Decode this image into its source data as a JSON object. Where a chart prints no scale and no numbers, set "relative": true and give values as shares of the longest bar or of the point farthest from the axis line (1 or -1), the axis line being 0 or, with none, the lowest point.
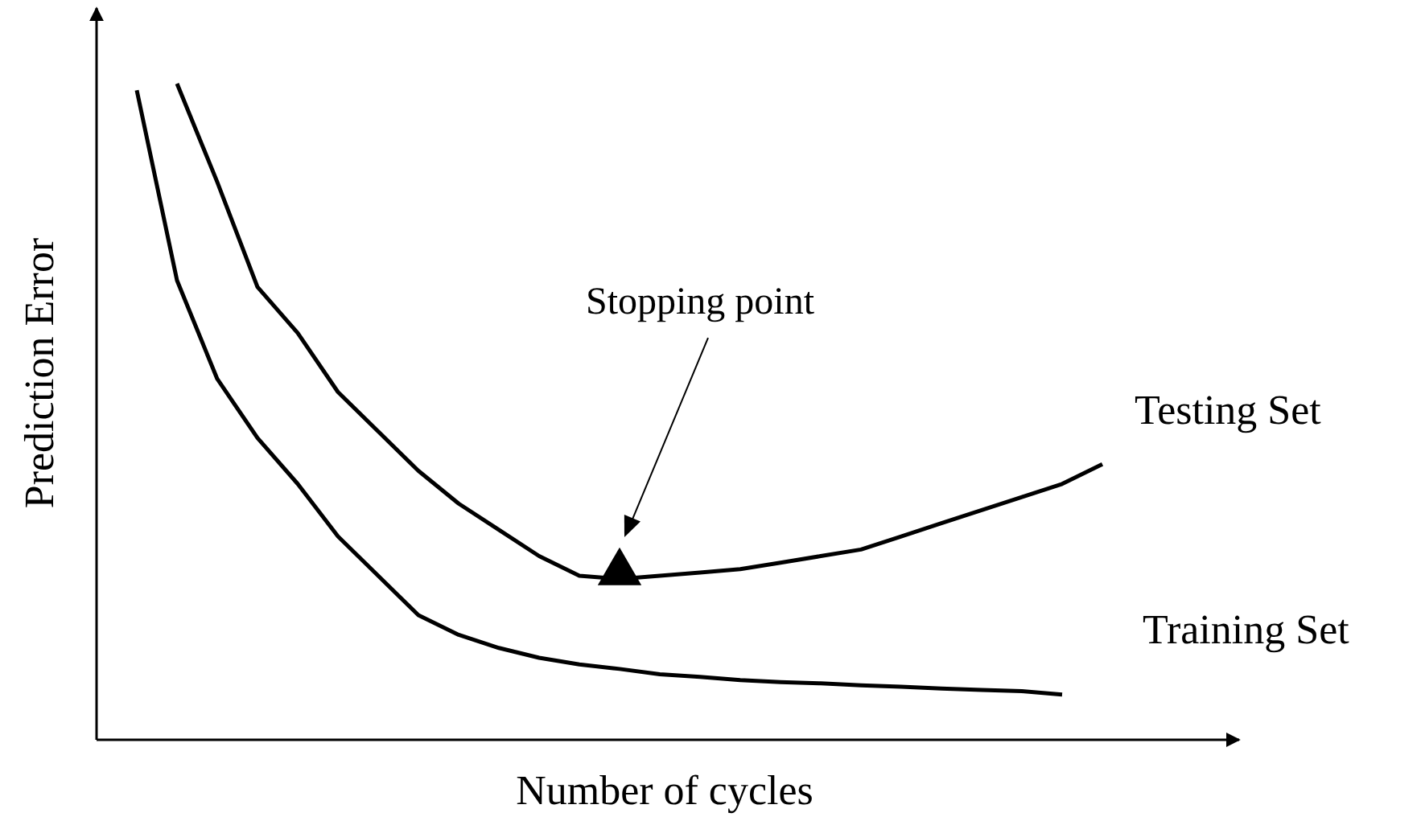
{
  "chart_data": {
    "type": "line",
    "relative": true,
    "xlabel": "Number of cycles",
    "ylabel": "Prediction Error",
    "annotations": [
      "Stopping point"
    ],
    "grid": false,
    "tick_labels": false,
    "marker": "none",
    "line_style": "solid",
    "categories": [
      null,
      null,
      null,
      null,
      null,
      null,
      null,
      null,
      null,
      null,
      null,
      null,
      null,
      null,
      null,
      null,
      null,
      null,
      null,
      null,
      null,
      null,
      null,
      null,
      null
    ],
    "series": [
      {
        "name": "Testing Set",
        "color": "#000000",
        "values": [
          null,
          1,
          0.85,
          0.69,
          0.62,
          0.53,
          0.47,
          0.41,
          0.36,
          0.32,
          0.28,
          0.25,
          0.245,
          0.25,
          0.255,
          0.26,
          0.27,
          0.28,
          0.29,
          0.31,
          0.33,
          0.35,
          0.37,
          0.39,
          0.42
        ]
      },
      {
        "name": "Training Set",
        "color": "#000000",
        "values": [
          0.99,
          0.7,
          0.55,
          0.46,
          0.39,
          0.31,
          0.25,
          0.19,
          0.16,
          0.14,
          0.125,
          0.115,
          0.108,
          0.1,
          0.096,
          0.091,
          0.088,
          0.086,
          0.083,
          0.081,
          0.078,
          0.076,
          0.074,
          0.069,
          null
        ]
      }
    ]
  }
}
